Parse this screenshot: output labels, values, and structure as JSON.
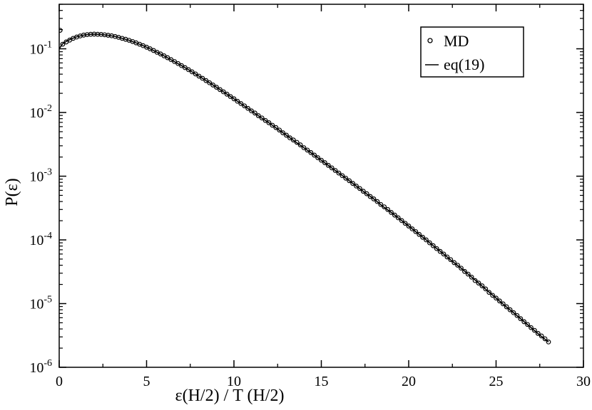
{
  "chart_data": {
    "type": "scatter",
    "xlabel": "ε(H/2) / T (H/2)",
    "ylabel": "P(ε)",
    "xlim": [
      0,
      30
    ],
    "ylim": [
      1e-06,
      0.5
    ],
    "yscale": "log",
    "grid": false,
    "legend_position": "top-right",
    "x_ticks": [
      0,
      5,
      10,
      15,
      20,
      25,
      30
    ],
    "y_ticks": [
      {
        "value": 1e-06,
        "mantissa": "10",
        "exp": "-6"
      },
      {
        "value": 1e-05,
        "mantissa": "10",
        "exp": "-5"
      },
      {
        "value": 0.0001,
        "mantissa": "10",
        "exp": "-4"
      },
      {
        "value": 0.001,
        "mantissa": "10",
        "exp": "-3"
      },
      {
        "value": 0.01,
        "mantissa": "10",
        "exp": "-2"
      },
      {
        "value": 0.1,
        "mantissa": "10",
        "exp": "-1"
      }
    ],
    "series": [
      {
        "name": "MD",
        "style": "markers",
        "marker": "open-circle",
        "points": [
          [
            0.05,
            0.195
          ],
          [
            0.2,
            0.118
          ],
          [
            0.4,
            0.128
          ],
          [
            0.6,
            0.137
          ],
          [
            0.8,
            0.146
          ],
          [
            1.0,
            0.153
          ],
          [
            1.2,
            0.159
          ],
          [
            1.4,
            0.164
          ],
          [
            1.6,
            0.167
          ],
          [
            1.8,
            0.169
          ],
          [
            2.0,
            0.17
          ],
          [
            2.2,
            0.169
          ],
          [
            2.4,
            0.168
          ],
          [
            2.6,
            0.166
          ],
          [
            2.8,
            0.163
          ],
          [
            3.0,
            0.16
          ],
          [
            3.2,
            0.156
          ],
          [
            3.4,
            0.151
          ],
          [
            3.6,
            0.146
          ],
          [
            3.8,
            0.141
          ],
          [
            4.0,
            0.136
          ],
          [
            4.2,
            0.13
          ],
          [
            4.4,
            0.124
          ],
          [
            4.6,
            0.118
          ],
          [
            4.8,
            0.112
          ],
          [
            5.0,
            0.106
          ],
          [
            5.2,
            0.1
          ],
          [
            5.4,
            0.094
          ],
          [
            5.6,
            0.088
          ],
          [
            5.8,
            0.083
          ],
          [
            6.0,
            0.0775
          ],
          [
            6.2,
            0.0725
          ],
          [
            6.4,
            0.0676
          ],
          [
            6.6,
            0.063
          ],
          [
            6.8,
            0.0587
          ],
          [
            7.0,
            0.0545
          ],
          [
            7.2,
            0.0506
          ],
          [
            7.4,
            0.047
          ],
          [
            7.6,
            0.0435
          ],
          [
            7.8,
            0.0403
          ],
          [
            8.0,
            0.0372
          ],
          [
            8.2,
            0.0344
          ],
          [
            8.4,
            0.0317
          ],
          [
            8.6,
            0.0293
          ],
          [
            8.8,
            0.027
          ],
          [
            9.0,
            0.0249
          ],
          [
            9.2,
            0.0229
          ],
          [
            9.4,
            0.0211
          ],
          [
            9.6,
            0.0194
          ],
          [
            9.8,
            0.0178
          ],
          [
            10.0,
            0.0164
          ],
          [
            10.2,
            0.015
          ],
          [
            10.4,
            0.0138
          ],
          [
            10.6,
            0.0127
          ],
          [
            10.8,
            0.0116
          ],
          [
            11.0,
            0.0106
          ],
          [
            11.2,
            0.0098
          ],
          [
            11.4,
            0.0089
          ],
          [
            11.6,
            0.0082
          ],
          [
            11.8,
            0.0075
          ],
          [
            12.0,
            0.0069
          ],
          [
            12.2,
            0.0063
          ],
          [
            12.4,
            0.0058
          ],
          [
            12.6,
            0.0053
          ],
          [
            12.8,
            0.0048
          ],
          [
            13.0,
            0.0044
          ],
          [
            13.2,
            0.004
          ],
          [
            13.4,
            0.0037
          ],
          [
            13.6,
            0.0034
          ],
          [
            13.8,
            0.0031
          ],
          [
            14.0,
            0.0028
          ],
          [
            14.2,
            0.00257
          ],
          [
            14.4,
            0.00235
          ],
          [
            14.6,
            0.00214
          ],
          [
            14.8,
            0.00195
          ],
          [
            15.0,
            0.00178
          ],
          [
            15.2,
            0.00163
          ],
          [
            15.4,
            0.00148
          ],
          [
            15.6,
            0.00135
          ],
          [
            15.8,
            0.00123
          ],
          [
            16.0,
            0.00112
          ],
          [
            16.2,
            0.00102
          ],
          [
            16.4,
            0.00093
          ],
          [
            16.6,
            0.00085
          ],
          [
            16.8,
            0.00077
          ],
          [
            17.0,
            0.0007
          ],
          [
            17.2,
            0.00064
          ],
          [
            17.4,
            0.00058
          ],
          [
            17.6,
            0.00053
          ],
          [
            17.8,
            0.00048
          ],
          [
            18.0,
            0.00044
          ],
          [
            18.2,
            0.0004
          ],
          [
            18.4,
            0.00036
          ],
          [
            18.6,
            0.00033
          ],
          [
            18.8,
            0.0003
          ],
          [
            19.0,
            0.00027
          ],
          [
            19.2,
            0.000245
          ],
          [
            19.4,
            0.000222
          ],
          [
            19.6,
            0.000201
          ],
          [
            19.8,
            0.000182
          ],
          [
            20.0,
            0.000165
          ],
          [
            20.2,
            0.000149
          ],
          [
            20.4,
            0.000135
          ],
          [
            20.6,
            0.000122
          ],
          [
            20.8,
            0.00011
          ],
          [
            21.0,
            0.0001
          ],
          [
            21.2,
            9e-05
          ],
          [
            21.4,
            8.1e-05
          ],
          [
            21.6,
            7.3e-05
          ],
          [
            21.8,
            6.6e-05
          ],
          [
            22.0,
            6e-05
          ],
          [
            22.2,
            5.4e-05
          ],
          [
            22.4,
            4.9e-05
          ],
          [
            22.6,
            4.4e-05
          ],
          [
            22.8,
            4e-05
          ],
          [
            23.0,
            3.6e-05
          ],
          [
            23.2,
            3.2e-05
          ],
          [
            23.4,
            2.9e-05
          ],
          [
            23.6,
            2.6e-05
          ],
          [
            23.8,
            2.3e-05
          ],
          [
            24.0,
            2.1e-05
          ],
          [
            24.2,
            1.9e-05
          ],
          [
            24.4,
            1.7e-05
          ],
          [
            24.6,
            1.5e-05
          ],
          [
            24.8,
            1.35e-05
          ],
          [
            25.0,
            1.22e-05
          ],
          [
            25.2,
            1.1e-05
          ],
          [
            25.4,
            9.9e-06
          ],
          [
            25.6,
            8.9e-06
          ],
          [
            25.8,
            8e-06
          ],
          [
            26.0,
            7.2e-06
          ],
          [
            26.2,
            6.5e-06
          ],
          [
            26.4,
            5.8e-06
          ],
          [
            26.6,
            5.2e-06
          ],
          [
            26.8,
            4.7e-06
          ],
          [
            27.0,
            4.2e-06
          ],
          [
            27.2,
            3.8e-06
          ],
          [
            27.4,
            3.4e-06
          ],
          [
            27.6,
            3.1e-06
          ],
          [
            27.8,
            2.8e-06
          ],
          [
            28.0,
            2.5e-06
          ]
        ]
      },
      {
        "name": "eq(19)",
        "style": "line",
        "points": [
          [
            0.0,
            0.1
          ],
          [
            0.2,
            0.12
          ],
          [
            0.4,
            0.13
          ],
          [
            0.6,
            0.139
          ],
          [
            0.8,
            0.147
          ],
          [
            1.0,
            0.154
          ],
          [
            1.2,
            0.159
          ],
          [
            1.4,
            0.164
          ],
          [
            1.6,
            0.167
          ],
          [
            1.8,
            0.169
          ],
          [
            2.0,
            0.17
          ],
          [
            2.4,
            0.168
          ],
          [
            2.8,
            0.163
          ],
          [
            3.2,
            0.156
          ],
          [
            3.6,
            0.146
          ],
          [
            4.0,
            0.136
          ],
          [
            4.4,
            0.124
          ],
          [
            4.8,
            0.112
          ],
          [
            5.2,
            0.1
          ],
          [
            5.6,
            0.088
          ],
          [
            6.0,
            0.0775
          ],
          [
            6.5,
            0.065
          ],
          [
            7.0,
            0.0545
          ],
          [
            7.5,
            0.0452
          ],
          [
            8.0,
            0.0372
          ],
          [
            8.5,
            0.0305
          ],
          [
            9.0,
            0.0249
          ],
          [
            9.5,
            0.0202
          ],
          [
            10.0,
            0.0164
          ],
          [
            10.5,
            0.0132
          ],
          [
            11.0,
            0.0106
          ],
          [
            11.5,
            0.0085
          ],
          [
            12.0,
            0.0069
          ],
          [
            12.5,
            0.0055
          ],
          [
            13.0,
            0.0044
          ],
          [
            13.5,
            0.0035
          ],
          [
            14.0,
            0.0028
          ],
          [
            14.5,
            0.00224
          ],
          [
            15.0,
            0.00178
          ],
          [
            15.5,
            0.00141
          ],
          [
            16.0,
            0.00112
          ],
          [
            16.5,
            0.00089
          ],
          [
            17.0,
            0.0007
          ],
          [
            17.5,
            0.00055
          ],
          [
            18.0,
            0.00044
          ],
          [
            18.5,
            0.00034
          ],
          [
            19.0,
            0.00027
          ],
          [
            19.5,
            0.000211
          ],
          [
            20.0,
            0.000165
          ],
          [
            20.5,
            0.000128
          ],
          [
            21.0,
            0.0001
          ],
          [
            21.5,
            7.7e-05
          ],
          [
            22.0,
            6e-05
          ],
          [
            22.5,
            4.6e-05
          ],
          [
            23.0,
            3.6e-05
          ],
          [
            23.5,
            2.75e-05
          ],
          [
            24.0,
            2.1e-05
          ],
          [
            24.5,
            1.6e-05
          ],
          [
            25.0,
            1.22e-05
          ],
          [
            25.5,
            9.3e-06
          ],
          [
            26.0,
            7.2e-06
          ],
          [
            26.5,
            5.5e-06
          ],
          [
            27.0,
            4.2e-06
          ],
          [
            27.5,
            3.2e-06
          ],
          [
            28.0,
            2.5e-06
          ]
        ]
      }
    ]
  }
}
